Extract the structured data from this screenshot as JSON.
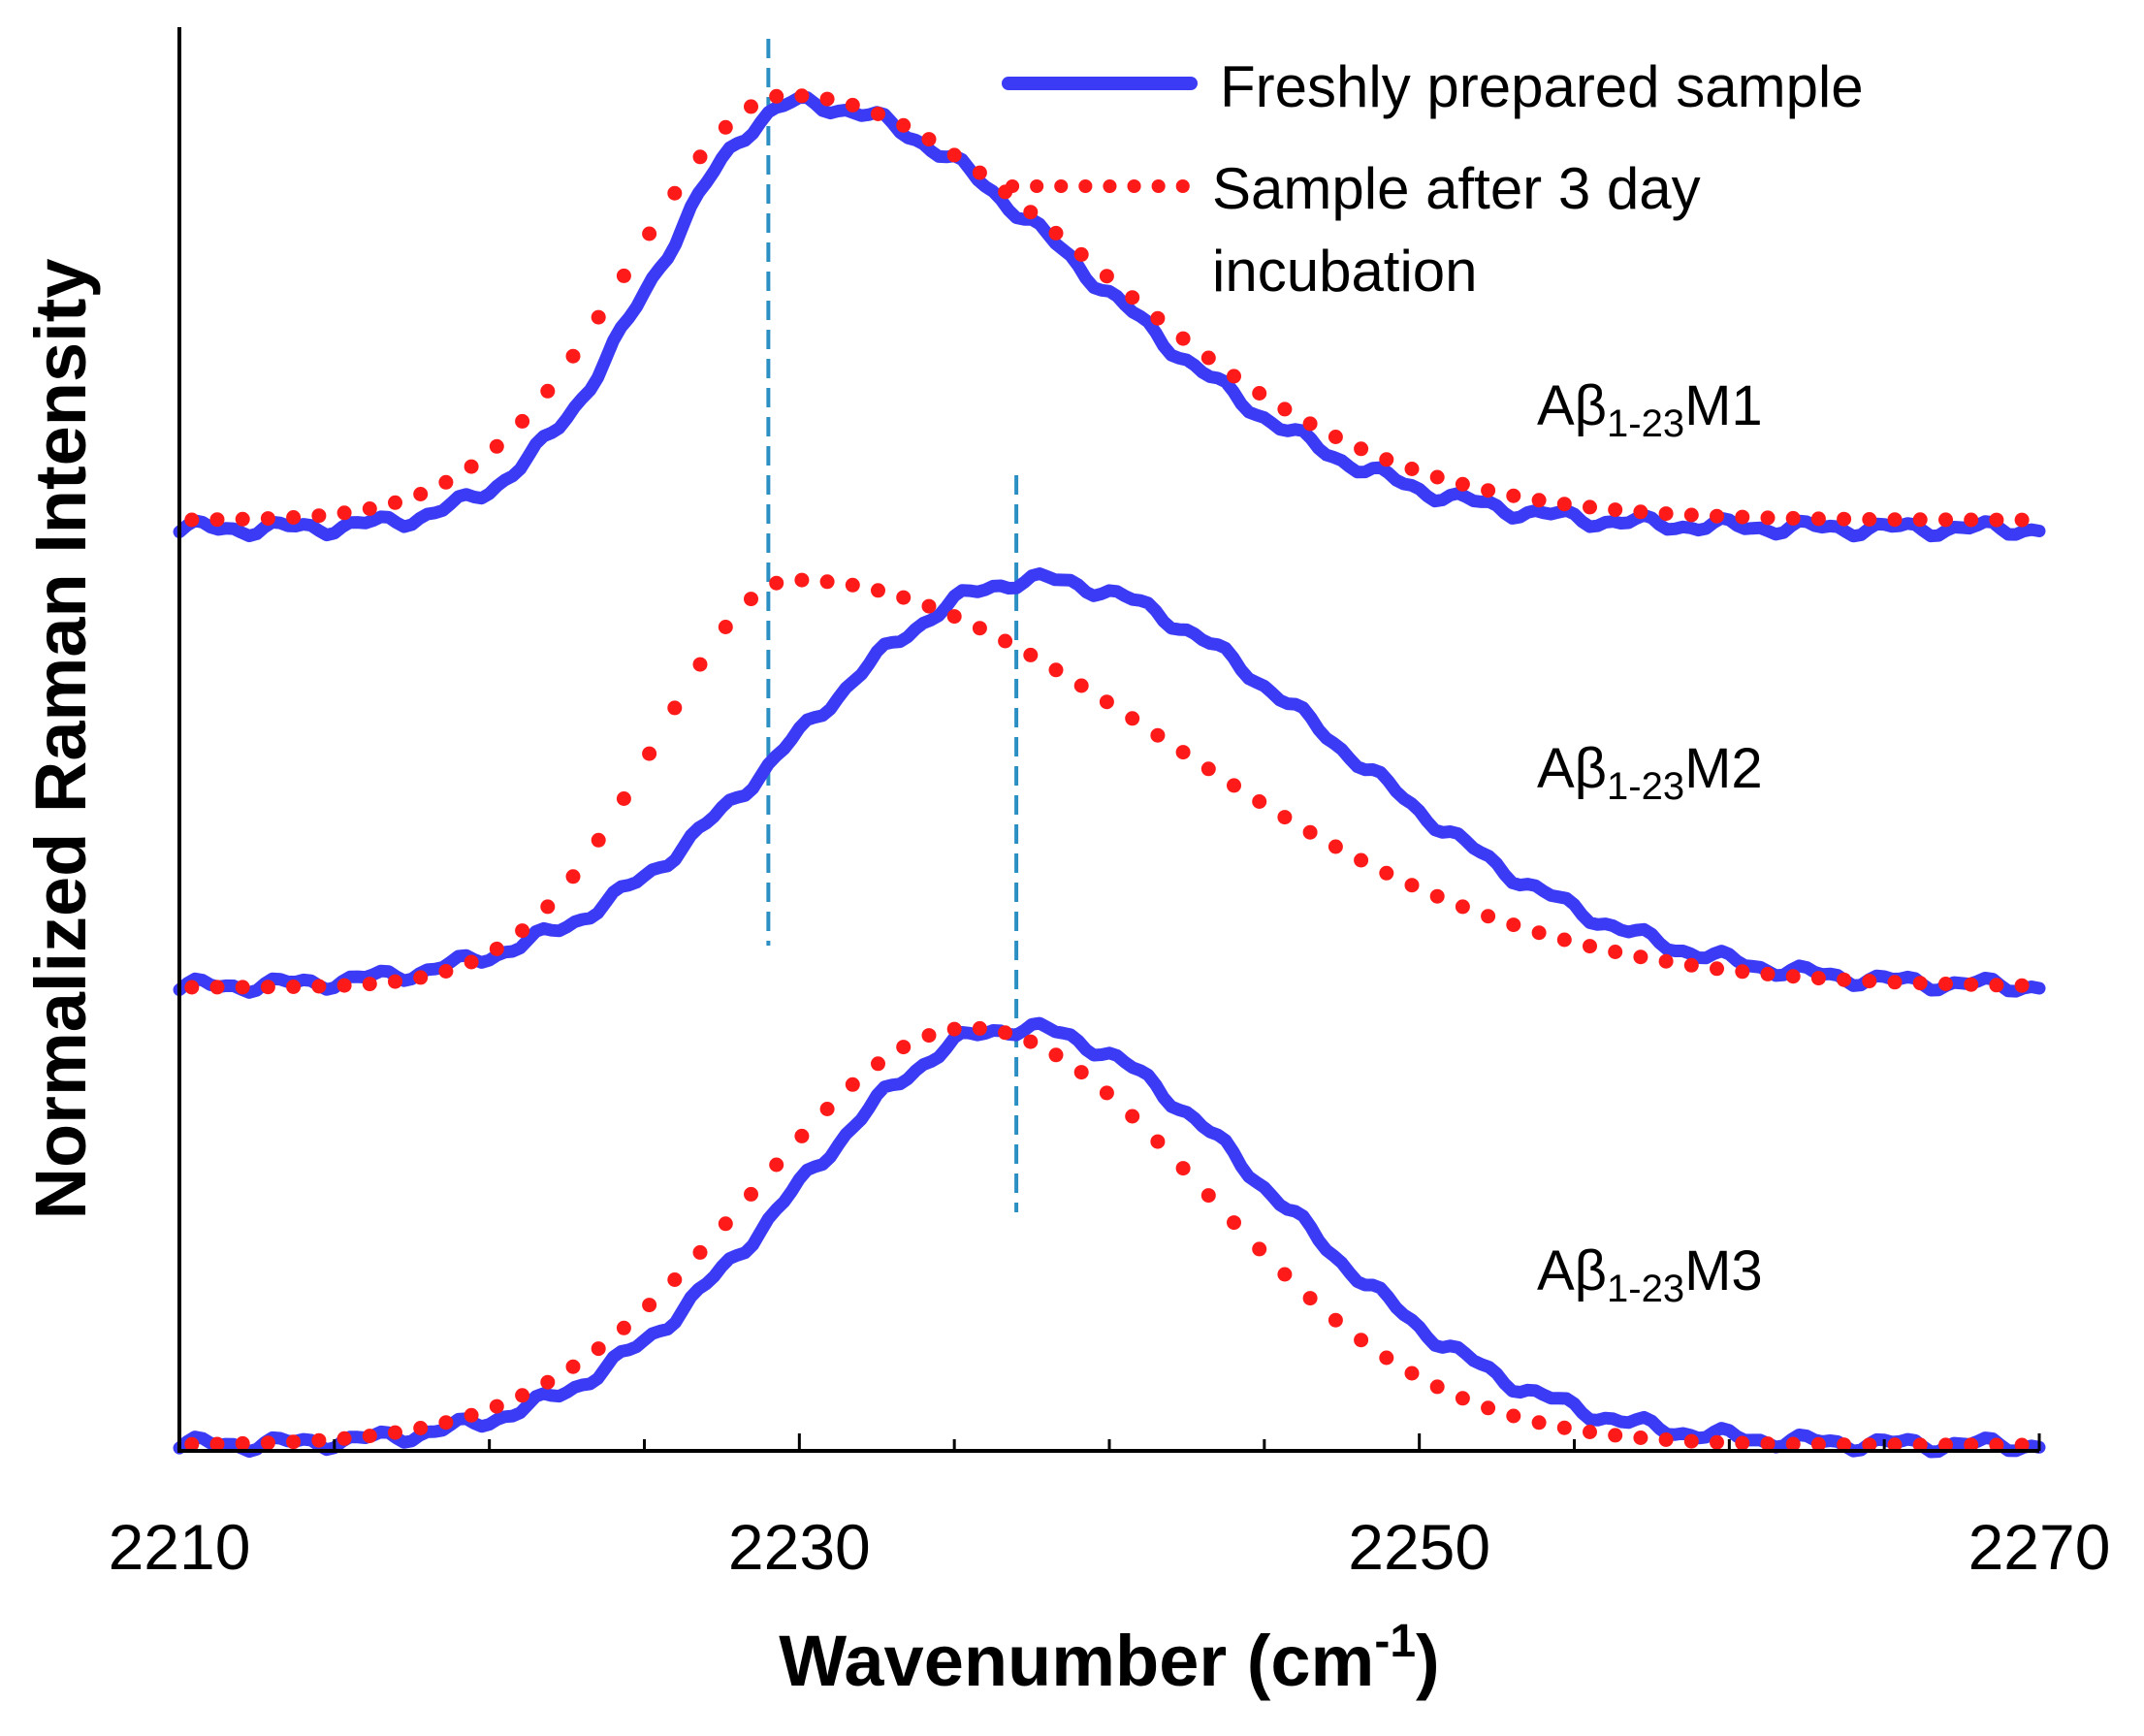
{
  "chart_data": {
    "type": "line",
    "title": "",
    "xlabel_main": "Wavenumber (cm",
    "xlabel_sup": "-1",
    "xlabel_close": ")",
    "ylabel": "Normalized Raman Intensity",
    "xlim": [
      2210,
      2270
    ],
    "x_ticks": [
      2210,
      2230,
      2250,
      2270
    ],
    "minor_tick_step": 5,
    "y_ticks_shown": false,
    "colors": {
      "fresh": "#3b3bf5",
      "incubated": "#ff1a1a",
      "guide": "#2c8fc4",
      "axis": "#000000"
    },
    "legend": {
      "position": "top-right",
      "entries": [
        {
          "label": "Freshly prepared sample",
          "style": "solid"
        },
        {
          "label_line1": "Sample after 3 day",
          "label_line2": "incubation",
          "style": "dotted"
        }
      ]
    },
    "panels": [
      {
        "name": "Aβ1-23M1",
        "label_main": "Aβ",
        "label_sub": "1-23",
        "label_suffix": "M1",
        "fresh": {
          "peak_x": 2230.0,
          "amplitude": 1.0,
          "sigma_left": 4.6,
          "sigma_right": 9.2,
          "baseline": 0.0
        },
        "incubated": {
          "peak_x": 2229.6,
          "amplitude": 1.0,
          "sigma_left": 5.0,
          "sigma_right": 9.8,
          "baseline": 0.02
        }
      },
      {
        "name": "Aβ1-23M2",
        "label_main": "Aβ",
        "label_sub": "1-23",
        "label_suffix": "M2",
        "fresh": {
          "peak_x": 2237.6,
          "amplitude": 1.0,
          "sigma_left": 7.8,
          "sigma_right": 9.6,
          "baseline": 0.0
        },
        "incubated": {
          "peak_x": 2229.8,
          "amplitude": 1.0,
          "sigma_left": 4.4,
          "sigma_right": 12.0,
          "baseline": 0.0
        }
      },
      {
        "name": "Aβ1-23M3",
        "label_main": "Aβ",
        "label_sub": "1-23",
        "label_suffix": "M3",
        "fresh": {
          "peak_x": 2237.0,
          "amplitude": 1.0,
          "sigma_left": 7.2,
          "sigma_right": 8.2,
          "baseline": 0.0
        },
        "incubated": {
          "peak_x": 2235.5,
          "amplitude": 1.0,
          "sigma_left": 7.0,
          "sigma_right": 7.6,
          "baseline": 0.0
        }
      }
    ],
    "reference_lines": [
      {
        "x": 2229,
        "description": "M1 peak reference"
      },
      {
        "x": 2237,
        "description": "M2/M3 peak reference"
      }
    ]
  }
}
